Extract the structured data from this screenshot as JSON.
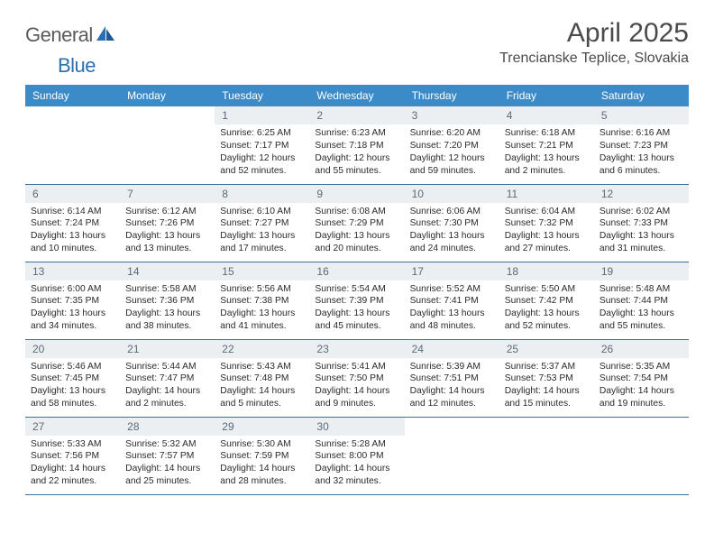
{
  "logo": {
    "part1": "General",
    "part2": "Blue"
  },
  "title": "April 2025",
  "location": "Trencianske Teplice, Slovakia",
  "header_color": "#3b8bc9",
  "daynum_bg": "#eceff1",
  "border_color": "#3b6fa0",
  "weekdays": [
    "Sunday",
    "Monday",
    "Tuesday",
    "Wednesday",
    "Thursday",
    "Friday",
    "Saturday"
  ],
  "leading_blanks": 2,
  "days": [
    {
      "n": 1,
      "sunrise": "6:25 AM",
      "sunset": "7:17 PM",
      "daylight": "12 hours and 52 minutes."
    },
    {
      "n": 2,
      "sunrise": "6:23 AM",
      "sunset": "7:18 PM",
      "daylight": "12 hours and 55 minutes."
    },
    {
      "n": 3,
      "sunrise": "6:20 AM",
      "sunset": "7:20 PM",
      "daylight": "12 hours and 59 minutes."
    },
    {
      "n": 4,
      "sunrise": "6:18 AM",
      "sunset": "7:21 PM",
      "daylight": "13 hours and 2 minutes."
    },
    {
      "n": 5,
      "sunrise": "6:16 AM",
      "sunset": "7:23 PM",
      "daylight": "13 hours and 6 minutes."
    },
    {
      "n": 6,
      "sunrise": "6:14 AM",
      "sunset": "7:24 PM",
      "daylight": "13 hours and 10 minutes."
    },
    {
      "n": 7,
      "sunrise": "6:12 AM",
      "sunset": "7:26 PM",
      "daylight": "13 hours and 13 minutes."
    },
    {
      "n": 8,
      "sunrise": "6:10 AM",
      "sunset": "7:27 PM",
      "daylight": "13 hours and 17 minutes."
    },
    {
      "n": 9,
      "sunrise": "6:08 AM",
      "sunset": "7:29 PM",
      "daylight": "13 hours and 20 minutes."
    },
    {
      "n": 10,
      "sunrise": "6:06 AM",
      "sunset": "7:30 PM",
      "daylight": "13 hours and 24 minutes."
    },
    {
      "n": 11,
      "sunrise": "6:04 AM",
      "sunset": "7:32 PM",
      "daylight": "13 hours and 27 minutes."
    },
    {
      "n": 12,
      "sunrise": "6:02 AM",
      "sunset": "7:33 PM",
      "daylight": "13 hours and 31 minutes."
    },
    {
      "n": 13,
      "sunrise": "6:00 AM",
      "sunset": "7:35 PM",
      "daylight": "13 hours and 34 minutes."
    },
    {
      "n": 14,
      "sunrise": "5:58 AM",
      "sunset": "7:36 PM",
      "daylight": "13 hours and 38 minutes."
    },
    {
      "n": 15,
      "sunrise": "5:56 AM",
      "sunset": "7:38 PM",
      "daylight": "13 hours and 41 minutes."
    },
    {
      "n": 16,
      "sunrise": "5:54 AM",
      "sunset": "7:39 PM",
      "daylight": "13 hours and 45 minutes."
    },
    {
      "n": 17,
      "sunrise": "5:52 AM",
      "sunset": "7:41 PM",
      "daylight": "13 hours and 48 minutes."
    },
    {
      "n": 18,
      "sunrise": "5:50 AM",
      "sunset": "7:42 PM",
      "daylight": "13 hours and 52 minutes."
    },
    {
      "n": 19,
      "sunrise": "5:48 AM",
      "sunset": "7:44 PM",
      "daylight": "13 hours and 55 minutes."
    },
    {
      "n": 20,
      "sunrise": "5:46 AM",
      "sunset": "7:45 PM",
      "daylight": "13 hours and 58 minutes."
    },
    {
      "n": 21,
      "sunrise": "5:44 AM",
      "sunset": "7:47 PM",
      "daylight": "14 hours and 2 minutes."
    },
    {
      "n": 22,
      "sunrise": "5:43 AM",
      "sunset": "7:48 PM",
      "daylight": "14 hours and 5 minutes."
    },
    {
      "n": 23,
      "sunrise": "5:41 AM",
      "sunset": "7:50 PM",
      "daylight": "14 hours and 9 minutes."
    },
    {
      "n": 24,
      "sunrise": "5:39 AM",
      "sunset": "7:51 PM",
      "daylight": "14 hours and 12 minutes."
    },
    {
      "n": 25,
      "sunrise": "5:37 AM",
      "sunset": "7:53 PM",
      "daylight": "14 hours and 15 minutes."
    },
    {
      "n": 26,
      "sunrise": "5:35 AM",
      "sunset": "7:54 PM",
      "daylight": "14 hours and 19 minutes."
    },
    {
      "n": 27,
      "sunrise": "5:33 AM",
      "sunset": "7:56 PM",
      "daylight": "14 hours and 22 minutes."
    },
    {
      "n": 28,
      "sunrise": "5:32 AM",
      "sunset": "7:57 PM",
      "daylight": "14 hours and 25 minutes."
    },
    {
      "n": 29,
      "sunrise": "5:30 AM",
      "sunset": "7:59 PM",
      "daylight": "14 hours and 28 minutes."
    },
    {
      "n": 30,
      "sunrise": "5:28 AM",
      "sunset": "8:00 PM",
      "daylight": "14 hours and 32 minutes."
    }
  ],
  "labels": {
    "sunrise": "Sunrise:",
    "sunset": "Sunset:",
    "daylight": "Daylight:"
  }
}
